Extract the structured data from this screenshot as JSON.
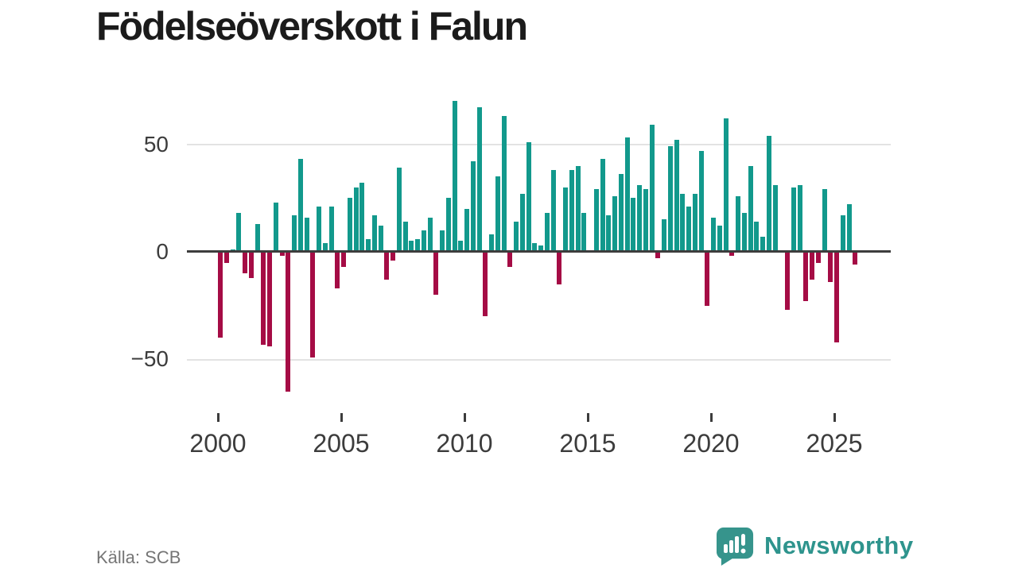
{
  "title": "Födelseöverskott i Falun",
  "source": "Källa: SCB",
  "branding": {
    "logo_text": "Newsworthy",
    "logo_icon": "bar-chart-speech-bubble-icon"
  },
  "chart_data": {
    "type": "bar",
    "title": "Födelseöverskott i Falun",
    "unit": "quarter",
    "frequency": "quarterly",
    "start_year": 2000,
    "points_per_year": 4,
    "x_start": "2000 Q1",
    "x_end": "2025 Q4",
    "values": [
      -40,
      -5,
      1,
      18,
      -10,
      -12,
      13,
      -43,
      -44,
      23,
      -2,
      -65,
      17,
      43,
      16,
      -49,
      21,
      4,
      21,
      -17,
      -7,
      25,
      30,
      32,
      6,
      17,
      12,
      -13,
      -4,
      39,
      14,
      5,
      6,
      10,
      16,
      -20,
      10,
      25,
      70,
      5,
      20,
      42,
      67,
      -30,
      8,
      35,
      63,
      -7,
      14,
      27,
      51,
      4,
      3,
      18,
      38,
      -15,
      30,
      38,
      40,
      18,
      0,
      29,
      43,
      17,
      26,
      36,
      53,
      25,
      31,
      29,
      59,
      -3,
      15,
      49,
      52,
      27,
      21,
      27,
      47,
      -25,
      16,
      12,
      62,
      -2,
      26,
      18,
      40,
      14,
      7,
      54,
      31,
      0,
      -27,
      30,
      31,
      -23,
      -13,
      -5,
      29,
      -14,
      -42,
      17,
      22,
      -6
    ],
    "x_tick_labels": [
      "2000",
      "2005",
      "2010",
      "2015",
      "2020",
      "2025"
    ],
    "y_tick_labels": [
      "50",
      "0",
      "−50"
    ],
    "y_gridlines": [
      50,
      0,
      -50
    ],
    "ylim": [
      -70,
      75
    ],
    "grid": "horizontal-only",
    "legend": "none",
    "colors": {
      "positive_bar": "#12998c",
      "negative_bar": "#a50c45",
      "axis_line": "#3d3d3d",
      "gridline": "#e3e3e3",
      "tick_text": "#3c3c3c",
      "source_text": "#757575",
      "brand_teal": "#2e948d"
    }
  }
}
